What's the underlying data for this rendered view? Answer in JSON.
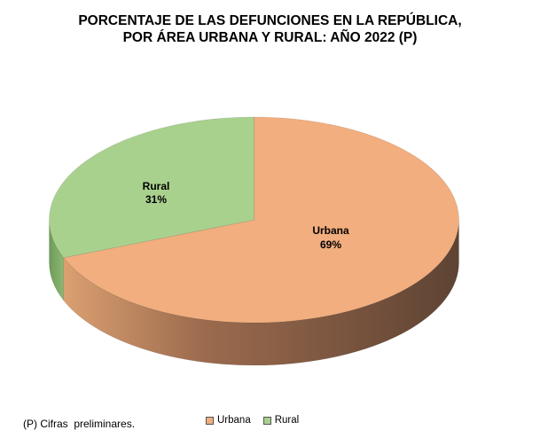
{
  "chart_data": {
    "type": "pie",
    "title_lines": [
      "PORCENTAJE DE LAS DEFUNCIONES EN LA REPÚBLICA,",
      "POR ÁREA URBANA Y RURAL: AÑO 2022 (P)"
    ],
    "slices": [
      {
        "name": "Urbana",
        "value": 69,
        "label": "69%",
        "color": "#F2AE7E",
        "side_light": "#DBA071",
        "side_dark": "#5E4333"
      },
      {
        "name": "Rural",
        "value": 31,
        "label": "31%",
        "color": "#A9D18E",
        "side_light": "#8DB873",
        "side_dark": "#6E9A58"
      }
    ],
    "legend": {
      "position": "bottom",
      "entries": [
        "Urbana",
        "Rural"
      ]
    },
    "footnote": "(P) Cifras  preliminares.",
    "style": "3d-pie"
  }
}
